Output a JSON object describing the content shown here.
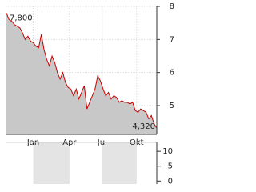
{
  "chart_data": [
    {
      "type": "area",
      "color": "#cc0000",
      "fill": "#c8c8c8",
      "grid": true,
      "xlim": [
        0,
        56
      ],
      "xticks": [
        {
          "value": 10,
          "label": "Jan"
        },
        {
          "value": 23.5,
          "label": "Apr"
        },
        {
          "value": 35.7,
          "label": "Jul"
        },
        {
          "value": 48.5,
          "label": "Okt"
        }
      ],
      "ylim": [
        4.13,
        8
      ],
      "yticks": [
        5,
        6,
        7,
        8
      ],
      "values": [
        7.8,
        7.6,
        7.55,
        7.45,
        7.4,
        7.35,
        7.2,
        7.0,
        7.1,
        6.95,
        6.9,
        6.8,
        6.75,
        7.15,
        6.7,
        6.4,
        6.2,
        6.5,
        6.3,
        6.0,
        5.8,
        6.0,
        5.7,
        5.55,
        5.5,
        5.3,
        5.5,
        5.2,
        5.4,
        5.6,
        4.9,
        5.1,
        5.3,
        5.5,
        5.9,
        5.75,
        5.5,
        5.3,
        5.4,
        5.2,
        5.3,
        5.25,
        5.1,
        5.15,
        5.1,
        5.1,
        5.05,
        5.1,
        4.85,
        4.8,
        4.9,
        4.85,
        4.8,
        4.6,
        4.7,
        4.45,
        4.32
      ],
      "value_labels": [
        "7,800",
        null,
        null,
        null,
        null,
        null,
        null,
        null,
        null,
        null,
        null,
        null,
        null,
        null,
        null,
        null,
        null,
        null,
        null,
        null,
        null,
        null,
        null,
        null,
        null,
        null,
        null,
        null,
        null,
        null,
        null,
        null,
        null,
        null,
        null,
        null,
        null,
        null,
        null,
        null,
        null,
        null,
        null,
        null,
        null,
        null,
        null,
        null,
        null,
        null,
        null,
        null,
        null,
        null,
        null,
        null,
        "4,320"
      ]
    },
    {
      "type": "bar",
      "ylim": [
        -1,
        13
      ],
      "yticks": [
        0,
        5,
        10
      ]
    }
  ]
}
